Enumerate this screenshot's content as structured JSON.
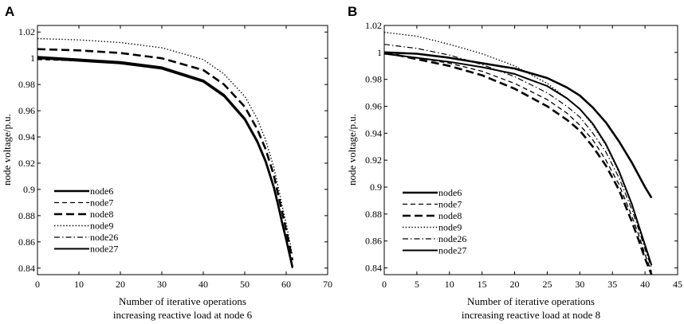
{
  "chart_data": [
    {
      "panel_label": "A",
      "type": "line",
      "xlabel": "Number of iterative operations",
      "xlabel2": "increasing reactive load at node 6",
      "ylabel": "node voltage/p.u.",
      "xlim": [
        0,
        70
      ],
      "ylim": [
        0.835,
        1.025
      ],
      "xticks": [
        0,
        10,
        20,
        30,
        40,
        50,
        60,
        70
      ],
      "yticks": [
        0.84,
        0.86,
        0.88,
        0.9,
        0.92,
        0.94,
        0.96,
        0.98,
        1,
        1.02
      ],
      "grid": false,
      "legend_position": "lower-left",
      "series": [
        {
          "name": "node6",
          "style": "solid-thick",
          "x": [
            0,
            10,
            20,
            30,
            40,
            45,
            50,
            53,
            55,
            57,
            58,
            59,
            60,
            61,
            61.5
          ],
          "y": [
            1.001,
            0.999,
            0.997,
            0.993,
            0.983,
            0.972,
            0.954,
            0.937,
            0.922,
            0.902,
            0.889,
            0.875,
            0.862,
            0.848,
            0.841
          ]
        },
        {
          "name": "node7",
          "style": "dashed",
          "x": [
            0,
            10,
            20,
            30,
            40,
            45,
            50,
            53,
            55,
            57,
            58,
            59,
            60,
            61,
            61.5
          ],
          "y": [
            0.999,
            0.998,
            0.996,
            0.992,
            0.982,
            0.971,
            0.953,
            0.936,
            0.921,
            0.901,
            0.888,
            0.874,
            0.861,
            0.847,
            0.84
          ]
        },
        {
          "name": "node8",
          "style": "dashed-thick",
          "x": [
            0,
            10,
            20,
            30,
            40,
            45,
            50,
            53,
            55,
            57,
            58,
            59,
            60,
            61,
            61.5
          ],
          "y": [
            1.007,
            1.006,
            1.004,
            1.0,
            0.991,
            0.98,
            0.963,
            0.946,
            0.931,
            0.911,
            0.897,
            0.883,
            0.869,
            0.854,
            0.846
          ]
        },
        {
          "name": "node9",
          "style": "dotted",
          "x": [
            0,
            10,
            20,
            30,
            40,
            45,
            50,
            53,
            55,
            57,
            58,
            59,
            60,
            61,
            61.5
          ],
          "y": [
            1.015,
            1.014,
            1.012,
            1.008,
            0.999,
            0.988,
            0.971,
            0.954,
            0.938,
            0.917,
            0.903,
            0.888,
            0.874,
            0.858,
            0.85
          ]
        },
        {
          "name": "node26",
          "style": "dashdot",
          "x": [
            0,
            10,
            20,
            30,
            40,
            45,
            50,
            53,
            55,
            57,
            58,
            59,
            60,
            61,
            61.5
          ],
          "y": [
            1.0,
            0.999,
            0.997,
            0.992,
            0.982,
            0.971,
            0.953,
            0.936,
            0.921,
            0.901,
            0.888,
            0.874,
            0.861,
            0.847,
            0.84
          ]
        },
        {
          "name": "node27",
          "style": "solid",
          "x": [
            0,
            10,
            20,
            30,
            40,
            45,
            50,
            53,
            55,
            57,
            58,
            59,
            60,
            61,
            61.5
          ],
          "y": [
            1.0,
            0.998,
            0.996,
            0.992,
            0.982,
            0.971,
            0.953,
            0.936,
            0.921,
            0.901,
            0.888,
            0.874,
            0.861,
            0.847,
            0.84
          ]
        }
      ]
    },
    {
      "panel_label": "B",
      "type": "line",
      "xlabel": "Number of iterative operations",
      "xlabel2": "increasing reactive load at node 8",
      "ylabel": "node voltage/p.u.",
      "xlim": [
        0,
        45
      ],
      "ylim": [
        0.835,
        1.02
      ],
      "xticks": [
        0,
        5,
        10,
        15,
        20,
        25,
        30,
        35,
        40,
        45
      ],
      "yticks": [
        0.84,
        0.86,
        0.88,
        0.9,
        0.92,
        0.94,
        0.96,
        0.98,
        1,
        1.02
      ],
      "grid": false,
      "legend_position": "lower-left",
      "series": [
        {
          "name": "node6",
          "style": "solid-thick",
          "x": [
            0,
            5,
            10,
            15,
            20,
            25,
            28,
            30,
            32,
            34,
            36,
            38,
            40,
            41
          ],
          "y": [
            1.0,
            0.999,
            0.996,
            0.992,
            0.988,
            0.981,
            0.974,
            0.968,
            0.959,
            0.948,
            0.934,
            0.918,
            0.9,
            0.892
          ]
        },
        {
          "name": "node7",
          "style": "dashed",
          "x": [
            0,
            5,
            10,
            15,
            20,
            25,
            28,
            30,
            32,
            34,
            36,
            38,
            39,
            40,
            41
          ],
          "y": [
            0.999,
            0.996,
            0.992,
            0.986,
            0.977,
            0.965,
            0.955,
            0.946,
            0.935,
            0.92,
            0.902,
            0.878,
            0.865,
            0.85,
            0.837
          ]
        },
        {
          "name": "node8",
          "style": "dashed-thick",
          "x": [
            0,
            5,
            10,
            15,
            20,
            25,
            28,
            30,
            32,
            34,
            36,
            38,
            39,
            40,
            41
          ],
          "y": [
            1.0,
            0.995,
            0.99,
            0.983,
            0.973,
            0.96,
            0.95,
            0.942,
            0.93,
            0.916,
            0.898,
            0.874,
            0.861,
            0.847,
            0.835
          ]
        },
        {
          "name": "node9",
          "style": "dotted",
          "x": [
            0,
            5,
            10,
            15,
            20,
            25,
            28,
            30,
            32,
            34,
            36,
            38,
            39,
            40,
            41
          ],
          "y": [
            1.015,
            1.012,
            1.006,
            0.999,
            0.99,
            0.977,
            0.966,
            0.958,
            0.946,
            0.931,
            0.911,
            0.886,
            0.872,
            0.857,
            0.842
          ]
        },
        {
          "name": "node26",
          "style": "dashdot",
          "x": [
            0,
            5,
            10,
            15,
            20,
            25,
            28,
            30,
            32,
            34,
            36,
            38,
            39,
            40,
            41
          ],
          "y": [
            1.006,
            1.003,
            0.998,
            0.991,
            0.982,
            0.97,
            0.96,
            0.952,
            0.94,
            0.926,
            0.907,
            0.883,
            0.869,
            0.854,
            0.84
          ]
        },
        {
          "name": "node27",
          "style": "solid",
          "x": [
            0,
            5,
            10,
            15,
            20,
            25,
            28,
            30,
            32,
            34,
            36,
            38,
            39,
            40,
            41
          ],
          "y": [
            0.999,
            0.996,
            0.993,
            0.989,
            0.984,
            0.975,
            0.966,
            0.958,
            0.947,
            0.932,
            0.912,
            0.887,
            0.872,
            0.857,
            0.842
          ]
        }
      ]
    }
  ]
}
